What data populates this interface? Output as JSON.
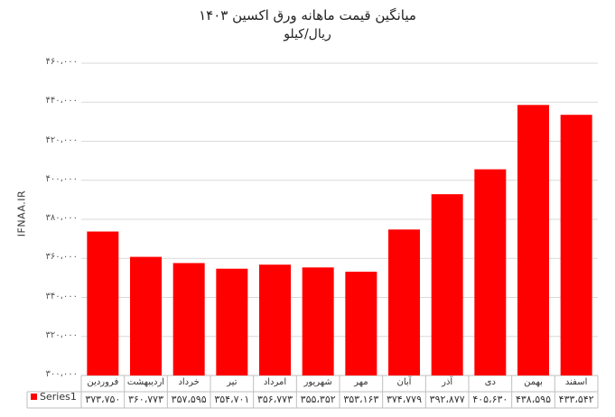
{
  "chart_data": {
    "type": "bar",
    "title": "میانگین قیمت ماهانه ورق اکسین ۱۴۰۳",
    "subtitle": "ریال/کیلو",
    "watermark": "IFNAA.IR",
    "ylim": [
      300000,
      460000
    ],
    "yticks": [
      300000,
      320000,
      340000,
      360000,
      380000,
      400000,
      420000,
      440000,
      460000
    ],
    "ytick_labels": [
      "۳۰۰،۰۰۰",
      "۳۲۰،۰۰۰",
      "۳۴۰،۰۰۰",
      "۳۶۰،۰۰۰",
      "۳۸۰،۰۰۰",
      "۴۰۰،۰۰۰",
      "۴۲۰،۰۰۰",
      "۴۴۰،۰۰۰",
      "۴۶۰،۰۰۰"
    ],
    "categories": [
      "فروردین",
      "اردیبهشت",
      "خرداد",
      "تیر",
      "امرداد",
      "شهریور",
      "مهر",
      "آبان",
      "آذر",
      "دی",
      "بهمن",
      "اسفند"
    ],
    "series": [
      {
        "name": "Series1",
        "color": "#ff0000",
        "values": [
          373750,
          360773,
          357595,
          354701,
          356773,
          355352,
          353163,
          374779,
          392877,
          405630,
          438595,
          433542
        ],
        "value_labels": [
          "۳۷۳،۷۵۰",
          "۳۶۰،۷۷۳",
          "۳۵۷،۵۹۵",
          "۳۵۴،۷۰۱",
          "۳۵۶،۷۷۳",
          "۳۵۵،۳۵۲",
          "۳۵۳،۱۶۳",
          "۳۷۴،۷۷۹",
          "۳۹۲،۸۷۷",
          "۴۰۵،۶۳۰",
          "۴۳۸،۵۹۵",
          "۴۳۳،۵۴۲"
        ]
      }
    ],
    "grid": true,
    "legend": "table-left"
  }
}
